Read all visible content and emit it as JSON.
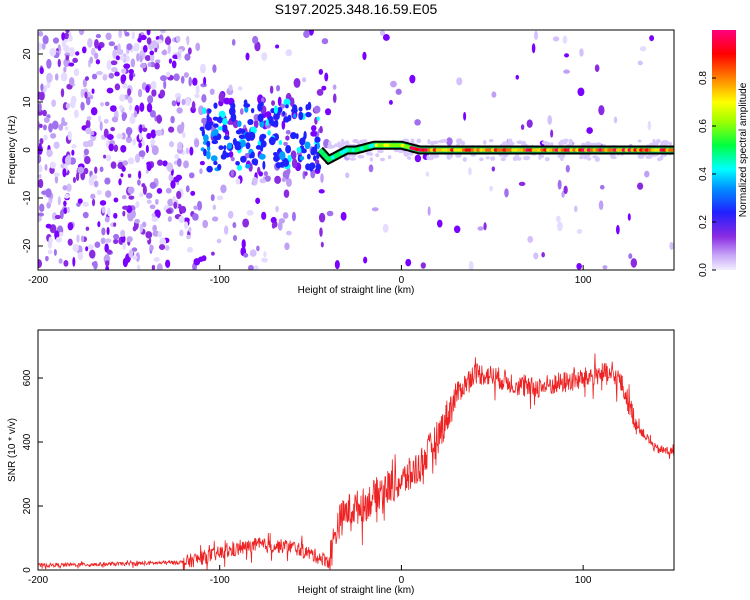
{
  "chart_data": [
    {
      "type": "heatmap",
      "title": "S197.2025.348.16.59.E05",
      "xlabel": "Height of straight line (km)",
      "ylabel": "Frequency (Hz)",
      "xlim": [
        -200,
        150
      ],
      "ylim": [
        -25,
        25
      ],
      "x_ticks": [
        -200,
        -100,
        0,
        100
      ],
      "y_ticks": [
        -20,
        -10,
        0,
        10,
        20
      ],
      "colorbar": {
        "label": "Normalized spectral amplitude",
        "range": [
          0.0,
          1.0
        ],
        "ticks": [
          "0.0",
          "0.2",
          "0.4",
          "0.6",
          "0.8"
        ],
        "colormap": [
          "#e0d8ff",
          "#8a2be2",
          "#0000ff",
          "#00ffff",
          "#00ff00",
          "#ffff00",
          "#ff8000",
          "#ff0000",
          "#ff0080"
        ]
      },
      "ridge": {
        "x": [
          -200,
          -120,
          -100,
          -80,
          -60,
          -50,
          -45,
          -40,
          -35,
          -30,
          -25,
          -20,
          -15,
          -10,
          0,
          10,
          50,
          100,
          150
        ],
        "freq": [
          0,
          0,
          3,
          4,
          3,
          2,
          0,
          -2,
          -1,
          0,
          0,
          0.5,
          1,
          1,
          1,
          0,
          0,
          0,
          0
        ]
      }
    },
    {
      "type": "line",
      "xlabel": "Height of straight line (km)",
      "ylabel": "SNR (10 * v/v)",
      "xlim": [
        -200,
        150
      ],
      "ylim": [
        0,
        750
      ],
      "x_ticks": [
        -200,
        -100,
        0,
        100
      ],
      "y_ticks": [
        0,
        200,
        400,
        600
      ],
      "color": "#ee2222",
      "envelope": {
        "x": [
          -200,
          -150,
          -120,
          -100,
          -80,
          -60,
          -40,
          -35,
          -30,
          -20,
          -10,
          0,
          10,
          20,
          30,
          40,
          50,
          60,
          70,
          80,
          90,
          100,
          110,
          120,
          130,
          140,
          150
        ],
        "y": [
          15,
          20,
          25,
          55,
          80,
          75,
          30,
          150,
          190,
          210,
          260,
          280,
          330,
          420,
          550,
          620,
          610,
          590,
          570,
          580,
          590,
          600,
          620,
          600,
          450,
          380,
          370
        ]
      }
    }
  ]
}
